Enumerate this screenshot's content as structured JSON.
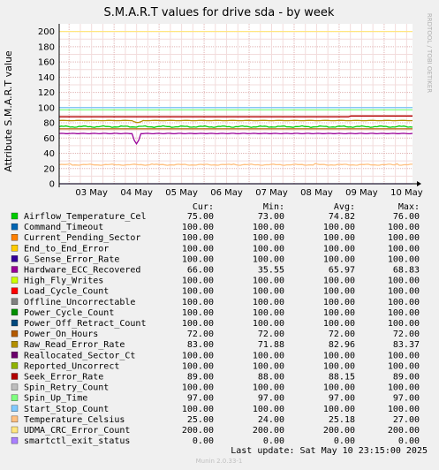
{
  "chart_data": {
    "type": "line",
    "title": "S.M.A.R.T values for drive sda - by week",
    "ylabel": "Attribute S.M.A.R.T value",
    "side_label": "RRDTOOL / TOBI OETIKER",
    "ylim": [
      0,
      210
    ],
    "yticks": [
      0,
      20,
      40,
      60,
      80,
      100,
      120,
      140,
      160,
      180,
      200
    ],
    "xticks": [
      "03 May",
      "04 May",
      "05 May",
      "06 May",
      "07 May",
      "08 May",
      "09 May",
      "10 May"
    ],
    "grid": true,
    "columns": [
      "Cur:",
      "Min:",
      "Avg:",
      "Max:"
    ],
    "series": [
      {
        "name": "Airflow_Temperature_Cel",
        "color": "#00cc00",
        "cur": "75.00",
        "min": "73.00",
        "avg": "74.82",
        "max": "76.00",
        "value": 75
      },
      {
        "name": "Command_Timeout",
        "color": "#0066b3",
        "cur": "100.00",
        "min": "100.00",
        "avg": "100.00",
        "max": "100.00",
        "value": 100
      },
      {
        "name": "Current_Pending_Sector",
        "color": "#ff8000",
        "cur": "100.00",
        "min": "100.00",
        "avg": "100.00",
        "max": "100.00",
        "value": 100
      },
      {
        "name": "End_to_End_Error",
        "color": "#ffcc00",
        "cur": "100.00",
        "min": "100.00",
        "avg": "100.00",
        "max": "100.00",
        "value": 100
      },
      {
        "name": "G_Sense_Error_Rate",
        "color": "#330099",
        "cur": "100.00",
        "min": "100.00",
        "avg": "100.00",
        "max": "100.00",
        "value": 100
      },
      {
        "name": "Hardware_ECC_Recovered",
        "color": "#990099",
        "cur": "66.00",
        "min": "35.55",
        "avg": "65.97",
        "max": "68.83",
        "value": 66
      },
      {
        "name": "High_Fly_Writes",
        "color": "#ccff00",
        "cur": "100.00",
        "min": "100.00",
        "avg": "100.00",
        "max": "100.00",
        "value": 100
      },
      {
        "name": "Load_Cycle_Count",
        "color": "#ff0000",
        "cur": "100.00",
        "min": "100.00",
        "avg": "100.00",
        "max": "100.00",
        "value": 100
      },
      {
        "name": "Offline_Uncorrectable",
        "color": "#808080",
        "cur": "100.00",
        "min": "100.00",
        "avg": "100.00",
        "max": "100.00",
        "value": 100
      },
      {
        "name": "Power_Cycle_Count",
        "color": "#008f00",
        "cur": "100.00",
        "min": "100.00",
        "avg": "100.00",
        "max": "100.00",
        "value": 100
      },
      {
        "name": "Power_Off_Retract_Count",
        "color": "#00487d",
        "cur": "100.00",
        "min": "100.00",
        "avg": "100.00",
        "max": "100.00",
        "value": 100
      },
      {
        "name": "Power_On_Hours",
        "color": "#b35a00",
        "cur": "72.00",
        "min": "72.00",
        "avg": "72.00",
        "max": "72.00",
        "value": 72
      },
      {
        "name": "Raw_Read_Error_Rate",
        "color": "#b38f00",
        "cur": "83.00",
        "min": "71.88",
        "avg": "82.96",
        "max": "83.37",
        "value": 83
      },
      {
        "name": "Reallocated_Sector_Ct",
        "color": "#6b006b",
        "cur": "100.00",
        "min": "100.00",
        "avg": "100.00",
        "max": "100.00",
        "value": 100
      },
      {
        "name": "Reported_Uncorrect",
        "color": "#8fb300",
        "cur": "100.00",
        "min": "100.00",
        "avg": "100.00",
        "max": "100.00",
        "value": 100
      },
      {
        "name": "Seek_Error_Rate",
        "color": "#b30000",
        "cur": "89.00",
        "min": "88.00",
        "avg": "88.15",
        "max": "89.00",
        "value": 89
      },
      {
        "name": "Spin_Retry_Count",
        "color": "#bebebe",
        "cur": "100.00",
        "min": "100.00",
        "avg": "100.00",
        "max": "100.00",
        "value": 100
      },
      {
        "name": "Spin_Up_Time",
        "color": "#80ff80",
        "cur": "97.00",
        "min": "97.00",
        "avg": "97.00",
        "max": "97.00",
        "value": 97
      },
      {
        "name": "Start_Stop_Count",
        "color": "#80c9ff",
        "cur": "100.00",
        "min": "100.00",
        "avg": "100.00",
        "max": "100.00",
        "value": 100
      },
      {
        "name": "Temperature_Celsius",
        "color": "#ffc080",
        "cur": "25.00",
        "min": "24.00",
        "avg": "25.18",
        "max": "27.00",
        "value": 25
      },
      {
        "name": "UDMA_CRC_Error_Count",
        "color": "#ffe680",
        "cur": "200.00",
        "min": "200.00",
        "avg": "200.00",
        "max": "200.00",
        "value": 200
      },
      {
        "name": "smartctl_exit_status",
        "color": "#aa80ff",
        "cur": "0.00",
        "min": "0.00",
        "avg": "0.00",
        "max": "0.00",
        "value": 0
      }
    ],
    "last_update": "Last update:  Sat May 10 23:15:00 2025",
    "footer": "Munin 2.0.33-1"
  }
}
